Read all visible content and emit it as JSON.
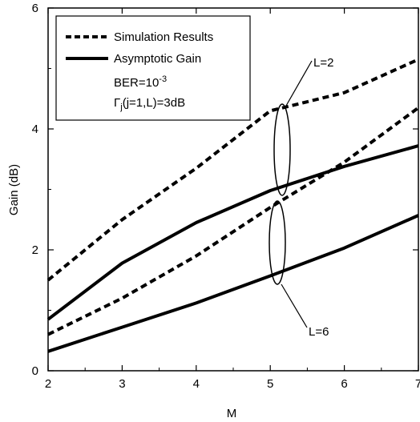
{
  "chart_data": {
    "type": "line",
    "title": "",
    "xlabel": "M",
    "ylabel": "Gain (dB)",
    "xlim": [
      2,
      7
    ],
    "ylim": [
      0,
      6
    ],
    "x_ticks": [
      "2",
      "3",
      "4",
      "5",
      "6",
      "7"
    ],
    "y_ticks": [
      "0",
      "2",
      "4",
      "6"
    ],
    "grid": false,
    "legend_position": "top-left",
    "legend": [
      {
        "label": "Simulation Results",
        "style": "dashed"
      },
      {
        "label": "Asymptotic Gain",
        "style": "solid"
      }
    ],
    "notes": {
      "ber_prefix": "BER=10",
      "ber_exp": "-3",
      "gamma_symbol": "Γ",
      "gamma_sub": "j",
      "gamma_rest": "(j=1,L)=3dB"
    },
    "group_labels": {
      "l2": "L=2",
      "l6": "L=6"
    },
    "series": [
      {
        "group": "L=2",
        "style": "dashed",
        "x": [
          2,
          3,
          4,
          5,
          6,
          7
        ],
        "y": [
          1.5,
          2.5,
          3.35,
          4.3,
          4.6,
          5.15
        ]
      },
      {
        "group": "L=2",
        "style": "solid",
        "x": [
          2,
          3,
          4,
          5,
          6,
          7
        ],
        "y": [
          0.85,
          1.78,
          2.45,
          2.98,
          3.38,
          3.72
        ]
      },
      {
        "group": "L=6",
        "style": "dashed",
        "x": [
          2,
          3,
          4,
          5,
          6,
          7
        ],
        "y": [
          0.6,
          1.2,
          1.9,
          2.7,
          3.45,
          4.35
        ]
      },
      {
        "group": "L=6",
        "style": "solid",
        "x": [
          2,
          3,
          4,
          5,
          6,
          7
        ],
        "y": [
          0.32,
          0.72,
          1.12,
          1.57,
          2.03,
          2.57
        ]
      }
    ]
  }
}
